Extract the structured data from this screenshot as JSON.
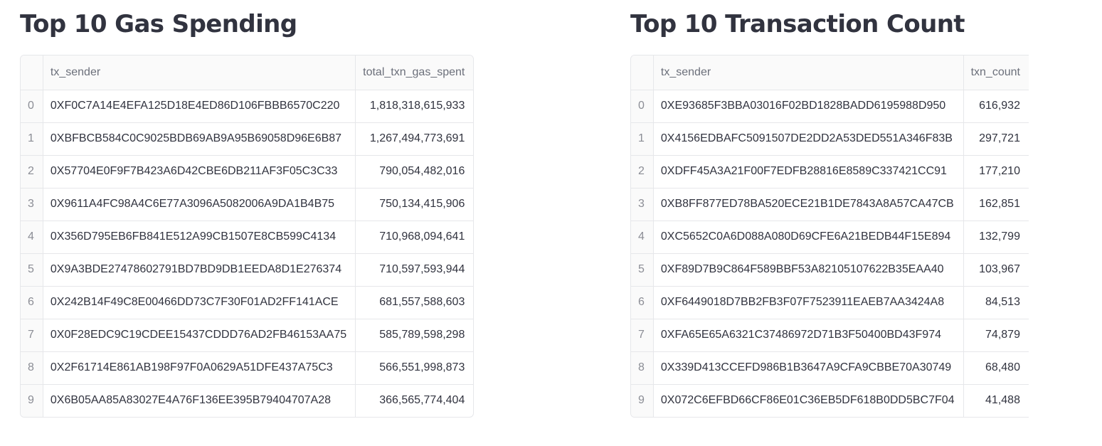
{
  "gas_table": {
    "title": "Top 10 Gas Spending",
    "columns": [
      "",
      "tx_sender",
      "total_txn_gas_spent"
    ],
    "rows": [
      {
        "index": "0",
        "tx_sender": "0XF0C7A14E4EFA125D18E4ED86D106FBBB6570C220",
        "value": "1,818,318,615,933"
      },
      {
        "index": "1",
        "tx_sender": "0XBFBCB584C0C9025BDB69AB9A95B69058D96E6B87",
        "value": "1,267,494,773,691"
      },
      {
        "index": "2",
        "tx_sender": "0X57704E0F9F7B423A6D42CBE6DB211AF3F05C3C33",
        "value": "790,054,482,016"
      },
      {
        "index": "3",
        "tx_sender": "0X9611A4FC98A4C6E77A3096A5082006A9DA1B4B75",
        "value": "750,134,415,906"
      },
      {
        "index": "4",
        "tx_sender": "0X356D795EB6FB841E512A99CB1507E8CB599C4134",
        "value": "710,968,094,641"
      },
      {
        "index": "5",
        "tx_sender": "0X9A3BDE27478602791BD7BD9DB1EEDA8D1E276374",
        "value": "710,597,593,944"
      },
      {
        "index": "6",
        "tx_sender": "0X242B14F49C8E00466DD73C7F30F01AD2FF141ACE",
        "value": "681,557,588,603"
      },
      {
        "index": "7",
        "tx_sender": "0X0F28EDC9C19CDEE15437CDDD76AD2FB46153AA75",
        "value": "585,789,598,298"
      },
      {
        "index": "8",
        "tx_sender": "0X2F61714E861AB198F97F0A0629A51DFE437A75C3",
        "value": "566,551,998,873"
      },
      {
        "index": "9",
        "tx_sender": "0X6B05AA85A83027E4A76F136EE395B79404707A28",
        "value": "366,565,774,404"
      }
    ]
  },
  "count_table": {
    "title": "Top 10 Transaction Count",
    "columns": [
      "",
      "tx_sender",
      "txn_count"
    ],
    "rows": [
      {
        "index": "0",
        "tx_sender": "0XE93685F3BBA03016F02BD1828BADD6195988D950",
        "value": "616,932"
      },
      {
        "index": "1",
        "tx_sender": "0X4156EDBAFC5091507DE2DD2A53DED551A346F83B",
        "value": "297,721"
      },
      {
        "index": "2",
        "tx_sender": "0XDFF45A3A21F00F7EDFB28816E8589C337421CC91",
        "value": "177,210"
      },
      {
        "index": "3",
        "tx_sender": "0XB8FF877ED78BA520ECE21B1DE7843A8A57CA47CB",
        "value": "162,851"
      },
      {
        "index": "4",
        "tx_sender": "0XC5652C0A6D088A080D69CFE6A21BEDB44F15E894",
        "value": "132,799"
      },
      {
        "index": "5",
        "tx_sender": "0XF89D7B9C864F589BBF53A82105107622B35EAA40",
        "value": "103,967"
      },
      {
        "index": "6",
        "tx_sender": "0XF6449018D7BB2FB3F07F7523911EAEB7AA3424A8",
        "value": "84,513"
      },
      {
        "index": "7",
        "tx_sender": "0XFA65E65A6321C37486972D71B3F50400BD43F974",
        "value": "74,879"
      },
      {
        "index": "8",
        "tx_sender": "0X339D413CCEFD986B1B3647A9CFA9CBBE70A30749",
        "value": "68,480"
      },
      {
        "index": "9",
        "tx_sender": "0X072C6EFBD66CF86E01C36EB5DF618B0DD5BC7F04",
        "value": "41,488"
      }
    ]
  }
}
